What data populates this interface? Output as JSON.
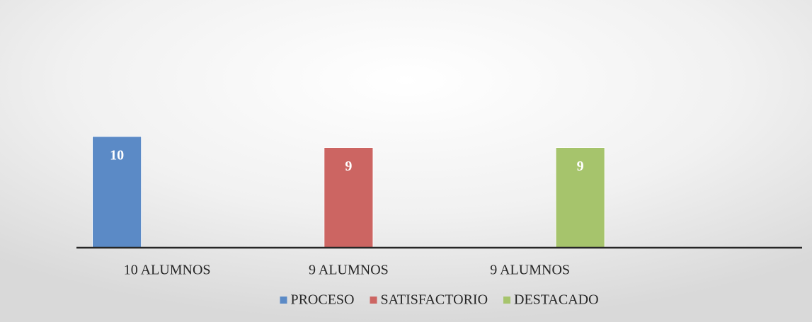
{
  "chart_data": {
    "type": "bar",
    "categories": [
      "10 ALUMNOS",
      "9 ALUMNOS",
      "9 ALUMNOS",
      null
    ],
    "series": [
      {
        "name": "PROCESO",
        "color": "#5b8ac6",
        "values": [
          10,
          null,
          null,
          null
        ]
      },
      {
        "name": "SATISFACTORIO",
        "color": "#cc6562",
        "values": [
          null,
          9,
          null,
          null
        ]
      },
      {
        "name": "DESTACADO",
        "color": "#a6c46c",
        "values": [
          null,
          null,
          9,
          null
        ]
      }
    ],
    "ylim": [
      0,
      14
    ],
    "legend": "bottom"
  }
}
